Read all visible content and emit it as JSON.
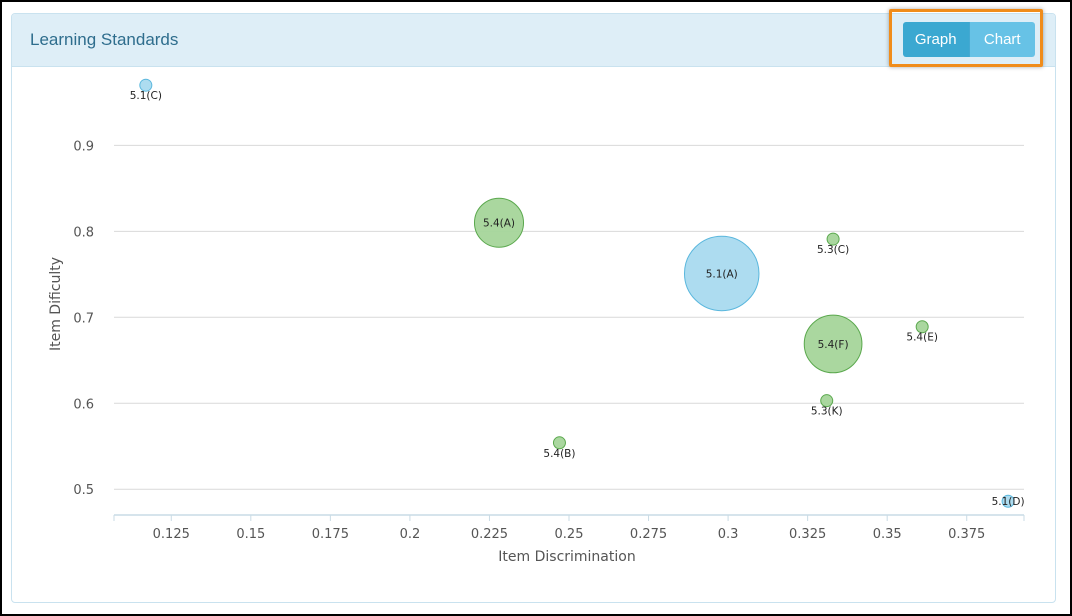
{
  "panel": {
    "title": "Learning Standards"
  },
  "toggle": {
    "graph_label": "Graph",
    "chart_label": "Chart",
    "active": "Graph"
  },
  "colors": {
    "blue_fill": "#a9daef",
    "blue_stroke": "#5ab7dd",
    "green_fill": "#a5d59a",
    "green_stroke": "#5aa84d",
    "grid": "#d9d9d9",
    "axis": "#c9dbe5",
    "accent": "#3ba8d1",
    "highlight": "#f08c1a"
  },
  "chart_data": {
    "type": "scatter",
    "title": "",
    "xlabel": "Item Discrimination",
    "ylabel": "Item Dificulty",
    "xlim": [
      0.107,
      0.393
    ],
    "ylim": [
      0.47,
      0.99
    ],
    "x_ticks": [
      0.125,
      0.15,
      0.175,
      0.2,
      0.225,
      0.25,
      0.275,
      0.3,
      0.325,
      0.35,
      0.375
    ],
    "x_tick_labels": [
      "0.125",
      "0.15",
      "0.175",
      "0.2",
      "0.225",
      "0.25",
      "0.275",
      "0.3",
      "0.325",
      "0.35",
      "0.375"
    ],
    "y_ticks": [
      0.5,
      0.6,
      0.7,
      0.8,
      0.9
    ],
    "y_tick_labels": [
      "0.5",
      "0.6",
      "0.7",
      "0.8",
      "0.9"
    ],
    "grid": true,
    "points": [
      {
        "label": "5.1(C)",
        "x": 0.117,
        "y": 0.97,
        "size": 1,
        "group": "blue",
        "label_pos": "below"
      },
      {
        "label": "5.4(A)",
        "x": 0.228,
        "y": 0.81,
        "size": 13,
        "group": "green",
        "label_pos": "center"
      },
      {
        "label": "5.1(A)",
        "x": 0.298,
        "y": 0.751,
        "size": 30,
        "group": "blue",
        "label_pos": "center"
      },
      {
        "label": "5.3(C)",
        "x": 0.333,
        "y": 0.791,
        "size": 1,
        "group": "green",
        "label_pos": "below"
      },
      {
        "label": "5.4(F)",
        "x": 0.333,
        "y": 0.669,
        "size": 18,
        "group": "green",
        "label_pos": "center"
      },
      {
        "label": "5.4(E)",
        "x": 0.361,
        "y": 0.689,
        "size": 1,
        "group": "green",
        "label_pos": "below"
      },
      {
        "label": "5.3(K)",
        "x": 0.331,
        "y": 0.603,
        "size": 1,
        "group": "green",
        "label_pos": "below"
      },
      {
        "label": "5.4(B)",
        "x": 0.247,
        "y": 0.554,
        "size": 1,
        "group": "green",
        "label_pos": "below"
      },
      {
        "label": "5.1(D)",
        "x": 0.388,
        "y": 0.486,
        "size": 1,
        "group": "blue",
        "label_pos": "center"
      }
    ]
  }
}
